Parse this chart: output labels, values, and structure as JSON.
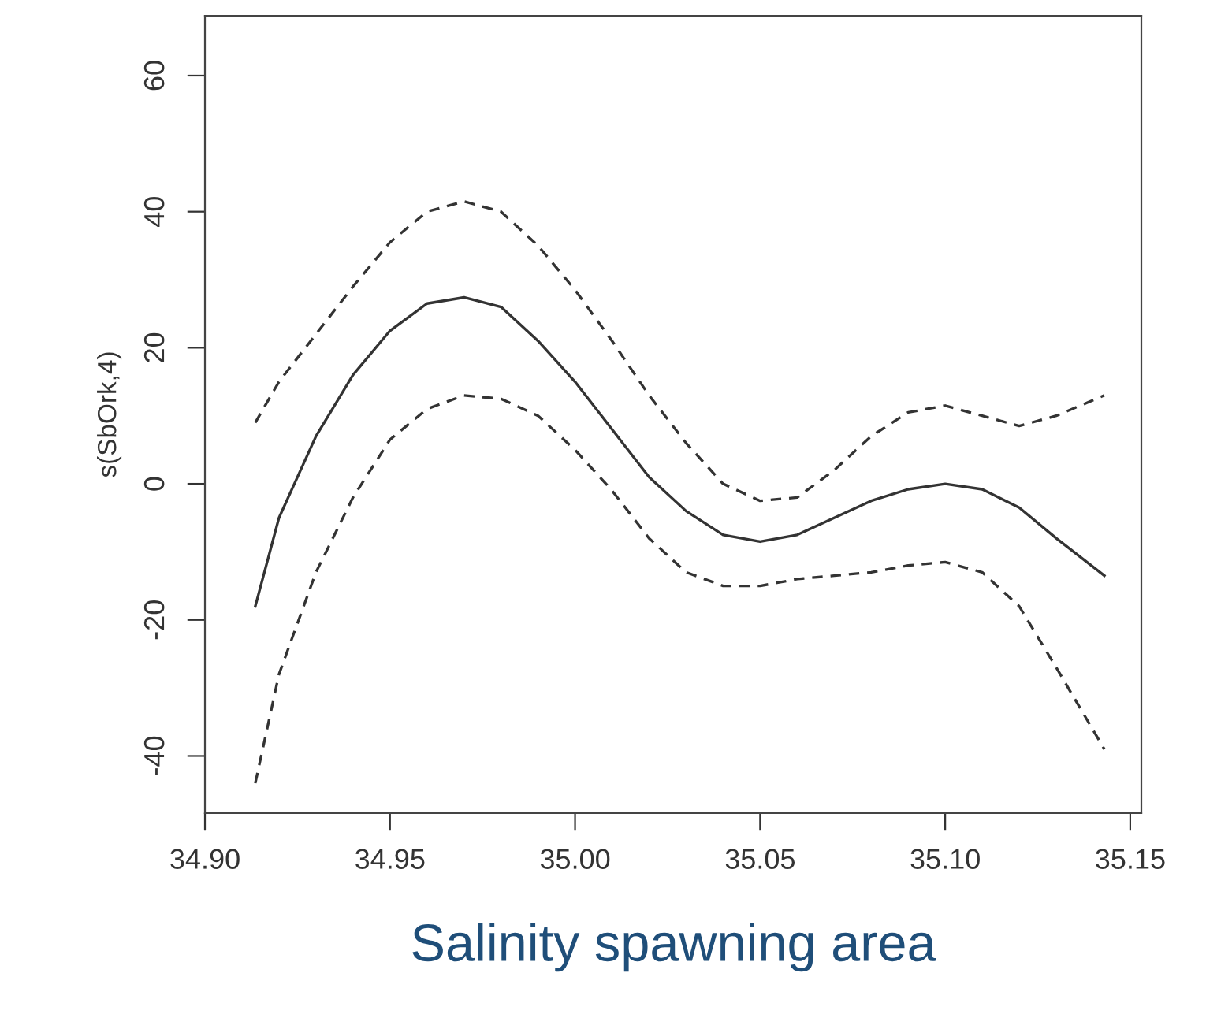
{
  "chart_data": {
    "type": "line",
    "xlabel": "Salinity spawning area",
    "ylabel": "s(SbOrk,4)",
    "x": [
      34.9136,
      34.92,
      34.93,
      34.94,
      34.95,
      34.96,
      34.97,
      34.98,
      34.99,
      35.0,
      35.01,
      35.02,
      35.03,
      35.04,
      35.05,
      35.06,
      35.07,
      35.08,
      35.09,
      35.1,
      35.11,
      35.12,
      35.13,
      35.143
    ],
    "xlim": [
      34.9,
      35.153
    ],
    "xticks": [
      {
        "value": 34.9,
        "label": "34.90"
      },
      {
        "value": 34.95,
        "label": "34.95"
      },
      {
        "value": 35.0,
        "label": "35.00"
      },
      {
        "value": 35.05,
        "label": "35.05"
      },
      {
        "value": 35.1,
        "label": "35.10"
      },
      {
        "value": 35.15,
        "label": "35.15"
      }
    ],
    "ylim": [
      -48.4,
      68.8
    ],
    "yticks": [
      -40,
      -20,
      0,
      20,
      40,
      60
    ],
    "series": [
      {
        "color": "#333333",
        "line_style": "solid",
        "values": [
          -18,
          -5,
          7,
          16,
          22.5,
          26.5,
          27.4,
          26,
          21,
          15,
          8,
          1,
          -4,
          -7.5,
          -8.5,
          -7.5,
          -5,
          -2.5,
          -0.8,
          0,
          -0.8,
          -3.5,
          -8,
          -13.5
        ]
      },
      {
        "color": "#333333",
        "line_style": "dashed",
        "values": [
          9,
          15,
          22,
          29,
          35.5,
          40,
          41.5,
          40,
          35,
          28.5,
          21,
          13,
          6,
          0,
          -2.5,
          -2,
          2,
          7,
          10.5,
          11.5,
          10,
          8.5,
          10,
          13
        ]
      },
      {
        "color": "#333333",
        "line_style": "dashed",
        "values": [
          -44,
          -28,
          -13,
          -2,
          6.5,
          11,
          13,
          12.5,
          10,
          5,
          -1,
          -8,
          -13,
          -15,
          -15,
          -14,
          -13.5,
          -13,
          -12,
          -11.5,
          -13,
          -18,
          -27,
          -39
        ]
      }
    ],
    "grid": false,
    "legend": false
  }
}
